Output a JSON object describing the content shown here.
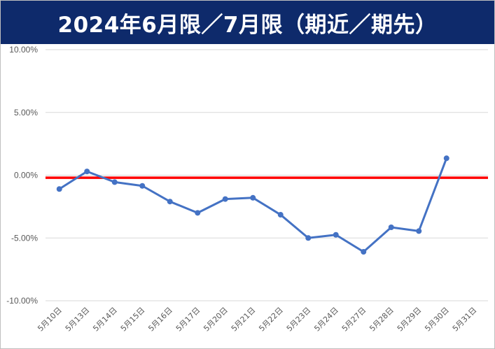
{
  "header": {
    "title": "2024年6月限／7月限（期近／期先）"
  },
  "chart_data": {
    "type": "line",
    "title": "2024年6月限／7月限（期近／期先）",
    "xlabel": "",
    "ylabel": "",
    "ylim": [
      -10,
      10
    ],
    "y_ticks": [
      10,
      5,
      0,
      -5,
      -10
    ],
    "y_tick_labels": [
      "10.00%",
      "5.00%",
      "0.00%",
      "-5.00%",
      "-10.00%"
    ],
    "grid": true,
    "legend": "none",
    "categories": [
      "5月10日",
      "5月13日",
      "5月14日",
      "5月15日",
      "5月16日",
      "5月17日",
      "5月20日",
      "5月21日",
      "5月22日",
      "5月23日",
      "5月24日",
      "5月27日",
      "5月28日",
      "5月29日",
      "5月30日",
      "5月31日"
    ],
    "series": [
      {
        "values": [
          -1.1,
          0.3,
          -0.55,
          -0.85,
          -2.1,
          -3.0,
          -1.9,
          -1.8,
          -3.15,
          -5.0,
          -4.75,
          -6.1,
          -4.15,
          -4.45,
          1.35,
          null
        ],
        "color": "#4472c4"
      }
    ],
    "reference_line": {
      "value": -0.2,
      "color": "#ff0000"
    }
  }
}
